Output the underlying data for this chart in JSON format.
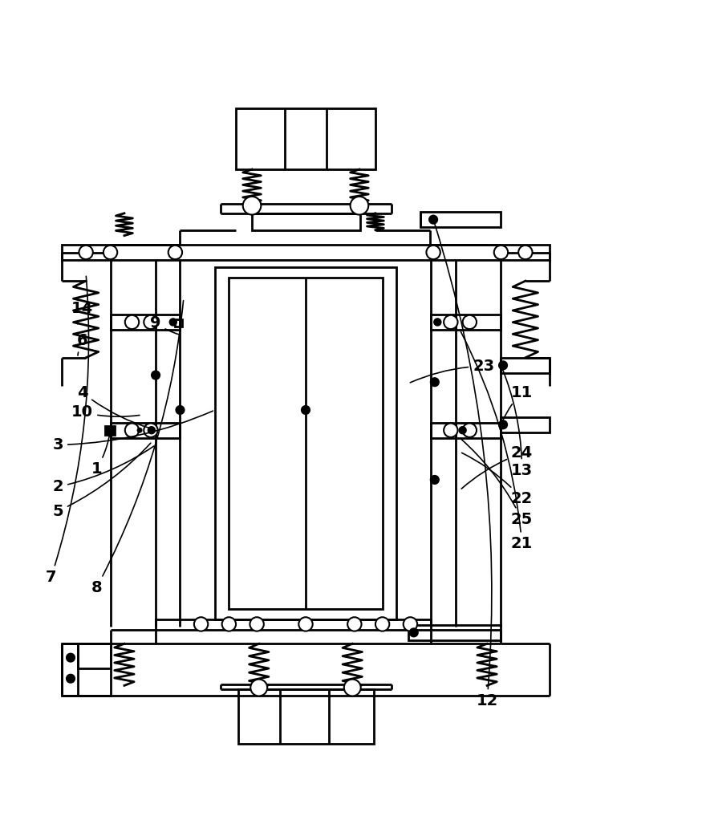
{
  "bg_color": "#ffffff",
  "lc": "#000000",
  "lw": 2.0,
  "lw_thin": 1.5,
  "fig_width": 8.75,
  "fig_height": 10.22,
  "labels": {
    "1": [
      0.135,
      0.415,
      0.215,
      0.415
    ],
    "2": [
      0.08,
      0.39,
      0.2,
      0.44
    ],
    "3": [
      0.08,
      0.45,
      0.305,
      0.5
    ],
    "4": [
      0.115,
      0.525,
      0.215,
      0.478
    ],
    "5": [
      0.08,
      0.36,
      0.215,
      0.455
    ],
    "6": [
      0.115,
      0.59,
      0.165,
      0.575
    ],
    "7": [
      0.07,
      0.26,
      0.115,
      0.695
    ],
    "8": [
      0.135,
      0.245,
      0.26,
      0.66
    ],
    "9": [
      0.22,
      0.625,
      0.258,
      0.607
    ],
    "10": [
      0.115,
      0.498,
      0.208,
      0.496
    ],
    "11": [
      0.745,
      0.525,
      0.71,
      0.492
    ],
    "12": [
      0.695,
      0.083,
      0.572,
      0.167
    ],
    "13": [
      0.745,
      0.415,
      0.71,
      0.557
    ],
    "14": [
      0.115,
      0.645,
      0.165,
      0.623
    ],
    "21": [
      0.745,
      0.31,
      0.655,
      0.615
    ],
    "22": [
      0.745,
      0.375,
      0.655,
      0.44
    ],
    "23": [
      0.69,
      0.565,
      0.582,
      0.538
    ],
    "24": [
      0.745,
      0.44,
      0.655,
      0.385
    ],
    "25": [
      0.745,
      0.345,
      0.655,
      0.46
    ]
  }
}
